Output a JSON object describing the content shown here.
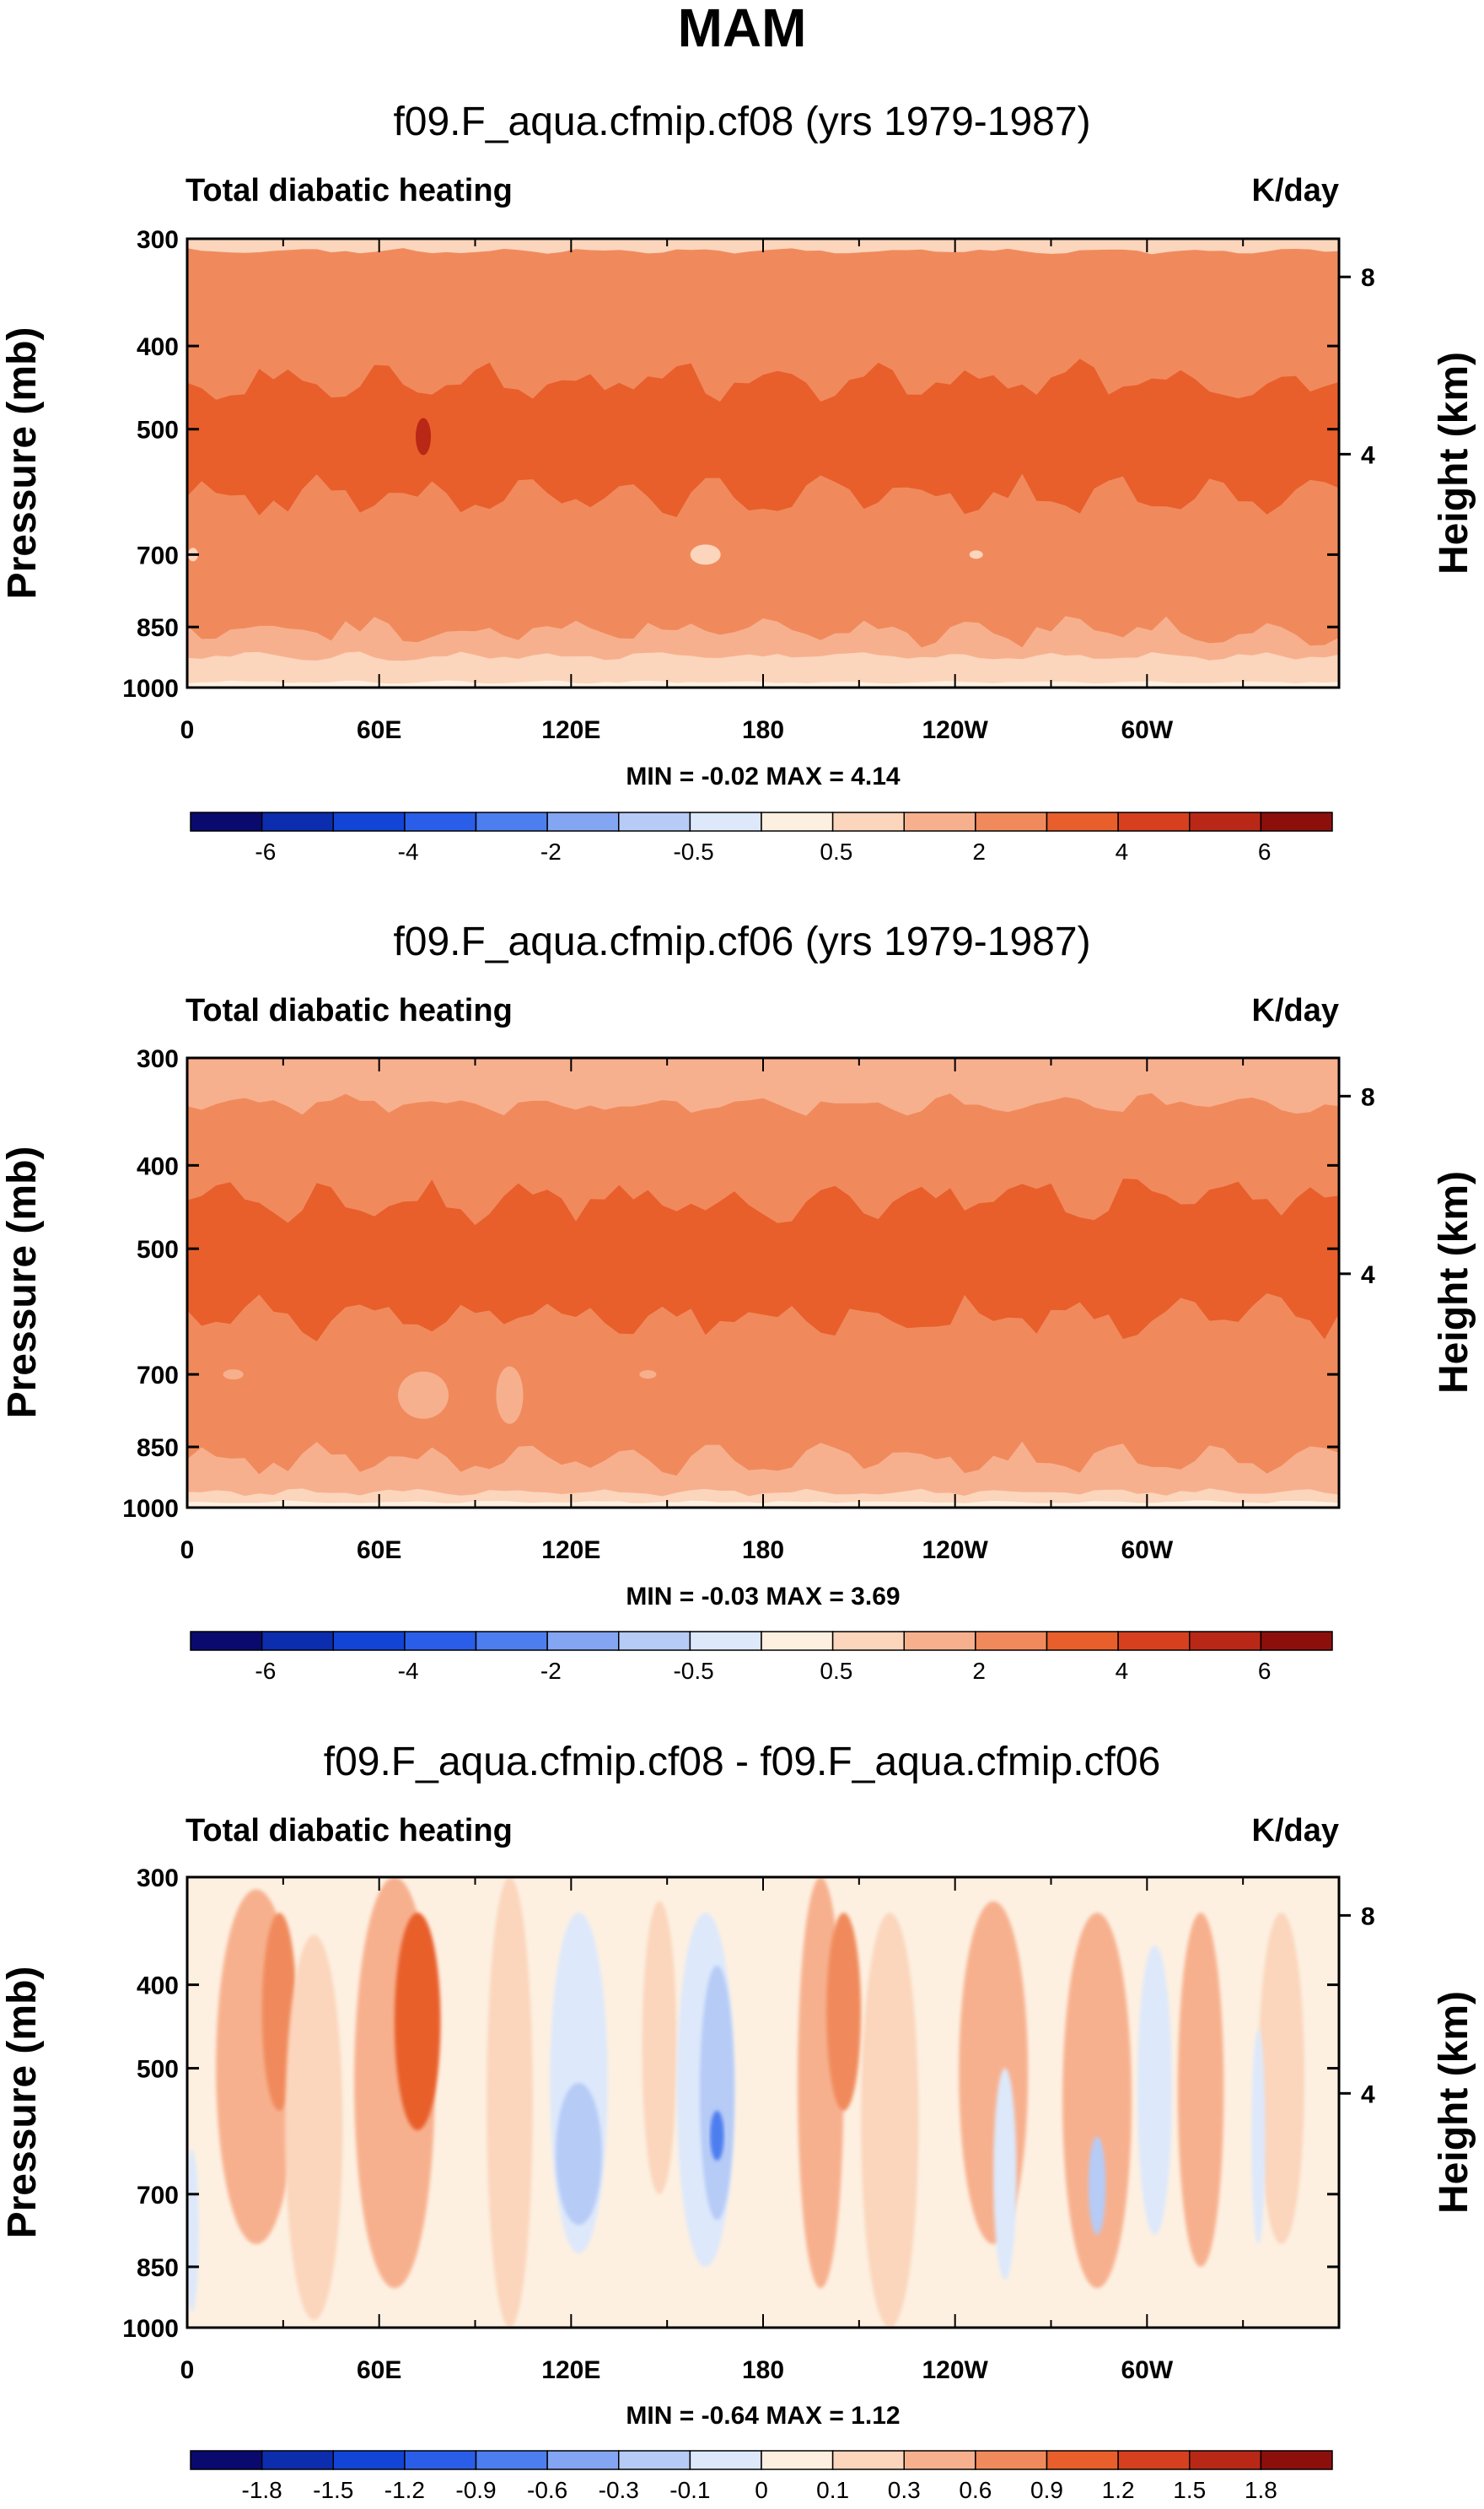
{
  "page": {
    "season_title": "MAM"
  },
  "colors": {
    "scale": [
      "#0a0a6e",
      "#0c2dae",
      "#1245d6",
      "#2a5ee8",
      "#4d7ef0",
      "#83a5f2",
      "#b6cbf6",
      "#dde8fb",
      "#fdf0e1",
      "#fbd5bc",
      "#f7b08e",
      "#f08a5c",
      "#e85f2c",
      "#d6401e",
      "#b92816",
      "#8c0f0c"
    ]
  },
  "chart_data": [
    {
      "type": "contour",
      "title": "f09.F_aqua.cfmip.cf08 (yrs 1979-1987)",
      "variable_label": "Total diabatic heating",
      "units_label": "K/day",
      "ylabel": "Pressure (mb)",
      "y2label": "Height (km)",
      "y_ticks": [
        "300",
        "400",
        "500",
        "700",
        "850",
        "1000"
      ],
      "y2_ticks": [
        "8",
        "4"
      ],
      "x_ticks": [
        "0",
        "60E",
        "120E",
        "180",
        "120W",
        "60W"
      ],
      "stats": "MIN =  -0.02  MAX =   4.14",
      "colorbar_labels": [
        "-6",
        "-4",
        "-2",
        "-0.5",
        "0.5",
        "2",
        "4",
        "6"
      ],
      "bands": [
        {
          "from_mb": 300,
          "to_mb": 310,
          "value": "0.5–1"
        },
        {
          "from_mb": 310,
          "to_mb": 440,
          "value": "2–3"
        },
        {
          "from_mb": 440,
          "to_mb": 600,
          "value": "3–4"
        },
        {
          "from_mb": 600,
          "to_mb": 860,
          "value": "2–3"
        },
        {
          "from_mb": 860,
          "to_mb": 920,
          "value": "1–2"
        },
        {
          "from_mb": 920,
          "to_mb": 985,
          "value": "0.5–1"
        },
        {
          "from_mb": 985,
          "to_mb": 1000,
          "value": "0–0.5"
        }
      ],
      "max_value": 4.14,
      "min_value": -0.02
    },
    {
      "type": "contour",
      "title": "f09.F_aqua.cfmip.cf06 (yrs 1979-1987)",
      "variable_label": "Total diabatic heating",
      "units_label": "K/day",
      "ylabel": "Pressure (mb)",
      "y2label": "Height (km)",
      "y_ticks": [
        "300",
        "400",
        "500",
        "700",
        "850",
        "1000"
      ],
      "y2_ticks": [
        "8",
        "4"
      ],
      "x_ticks": [
        "0",
        "60E",
        "120E",
        "180",
        "120W",
        "60W"
      ],
      "stats": "MIN =  -0.03  MAX =   3.69",
      "colorbar_labels": [
        "-6",
        "-4",
        "-2",
        "-0.5",
        "0.5",
        "2",
        "4",
        "6"
      ],
      "bands": [
        {
          "from_mb": 300,
          "to_mb": 340,
          "value": "1–2"
        },
        {
          "from_mb": 340,
          "to_mb": 440,
          "value": "2–3"
        },
        {
          "from_mb": 440,
          "to_mb": 600,
          "value": "3–4"
        },
        {
          "from_mb": 600,
          "to_mb": 880,
          "value": "2–3"
        },
        {
          "from_mb": 880,
          "to_mb": 960,
          "value": "1–2"
        },
        {
          "from_mb": 960,
          "to_mb": 985,
          "value": "0.5–1"
        },
        {
          "from_mb": 985,
          "to_mb": 1000,
          "value": "0–0.5"
        }
      ],
      "max_value": 3.69,
      "min_value": -0.03
    },
    {
      "type": "contour",
      "title": "f09.F_aqua.cfmip.cf08 - f09.F_aqua.cfmip.cf06",
      "variable_label": "Total diabatic heating",
      "units_label": "K/day",
      "ylabel": "Pressure (mb)",
      "y2label": "Height (km)",
      "y_ticks": [
        "300",
        "400",
        "500",
        "700",
        "850",
        "1000"
      ],
      "y2_ticks": [
        "8",
        "4"
      ],
      "x_ticks": [
        "0",
        "60E",
        "120E",
        "180",
        "120W",
        "60W"
      ],
      "stats": "MIN =  -0.64  MAX =   1.12",
      "colorbar_labels": [
        "-1.8",
        "-1.5",
        "-1.2",
        "-0.9",
        "-0.6",
        "-0.3",
        "-0.1",
        "0",
        "0.1",
        "0.3",
        "0.6",
        "0.9",
        "1.2",
        "1.5",
        "1.8"
      ],
      "max_value": 1.12,
      "min_value": -0.64
    }
  ]
}
